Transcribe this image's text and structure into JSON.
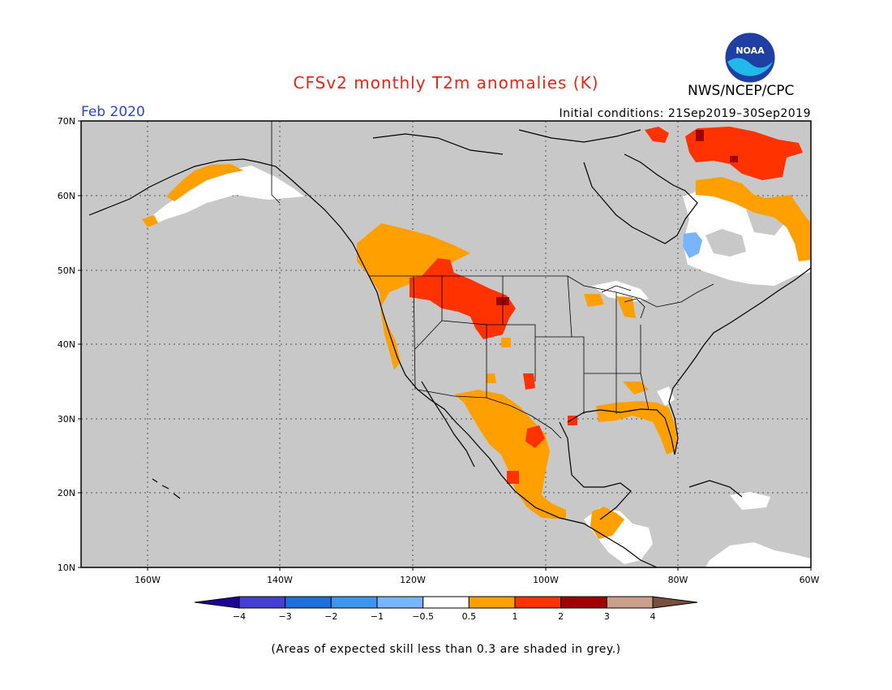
{
  "map": {
    "title": "CFSv2 monthly T2m anomalies (K)",
    "organization": "NWS/NCEP/CPC",
    "logo_text": "NOAA",
    "month": "Feb 2020",
    "initial_conditions": "Initial conditions: 21Sep2019–30Sep2019",
    "footnote": "(Areas of expected skill less than 0.3 are shaded in grey.)",
    "lat_ticks": [
      "70N",
      "60N",
      "50N",
      "40N",
      "30N",
      "20N",
      "10N"
    ],
    "lon_ticks": [
      "160W",
      "140W",
      "120W",
      "100W",
      "80W",
      "60W"
    ],
    "colors": {
      "low_skill_grey": "#c8c8c8",
      "near_normal": "#ffffff",
      "warm_05": "#ffa000",
      "warm_1": "#ff3200",
      "warm_2": "#a00000",
      "cool_m05": "#78b4ff"
    }
  },
  "legend": {
    "colors": [
      "#1e0096",
      "#4640d2",
      "#1e6edc",
      "#3c96f0",
      "#78b4ff",
      "#ffffff",
      "#ffa000",
      "#ff3200",
      "#a00000",
      "#c8a08c",
      "#784e3c"
    ],
    "labels": [
      "−4",
      "−3",
      "−2",
      "−1",
      "−0.5",
      "0.5",
      "1",
      "2",
      "3",
      "4"
    ]
  }
}
